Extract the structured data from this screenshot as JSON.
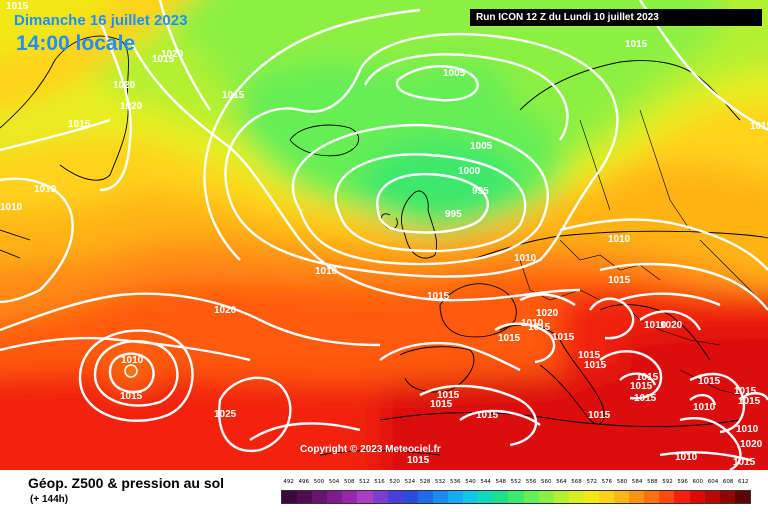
{
  "header": {
    "date": "Dimanche 16 juillet 2023",
    "local_time": "14:00 locale",
    "run_info": "Run ICON 12 Z du Lundi 10 juillet 2023"
  },
  "copyright": "Copyright © 2023 Meteociel.fr",
  "legend": {
    "title": "Géop. Z500 & pression au sol",
    "subtitle": "(+ 144h)",
    "scale": [
      {
        "value": "492",
        "color": "#3a0a3a"
      },
      {
        "value": "496",
        "color": "#4e0d52"
      },
      {
        "value": "500",
        "color": "#661470"
      },
      {
        "value": "504",
        "color": "#7d1c8c"
      },
      {
        "value": "508",
        "color": "#9527a8"
      },
      {
        "value": "512",
        "color": "#a940c2"
      },
      {
        "value": "516",
        "color": "#7a3fd0"
      },
      {
        "value": "520",
        "color": "#4a3fd8"
      },
      {
        "value": "524",
        "color": "#2a4be0"
      },
      {
        "value": "528",
        "color": "#1f6ae8"
      },
      {
        "value": "532",
        "color": "#1a8cef"
      },
      {
        "value": "536",
        "color": "#14acf2"
      },
      {
        "value": "540",
        "color": "#10c8e6"
      },
      {
        "value": "544",
        "color": "#12d9b8"
      },
      {
        "value": "548",
        "color": "#1ee08c"
      },
      {
        "value": "552",
        "color": "#3ee86a"
      },
      {
        "value": "556",
        "color": "#66ee55"
      },
      {
        "value": "560",
        "color": "#8cf043"
      },
      {
        "value": "564",
        "color": "#b4f032"
      },
      {
        "value": "568",
        "color": "#d8ee22"
      },
      {
        "value": "572",
        "color": "#f2e812"
      },
      {
        "value": "576",
        "color": "#ffd21a"
      },
      {
        "value": "580",
        "color": "#ffb418"
      },
      {
        "value": "584",
        "color": "#ff9414"
      },
      {
        "value": "588",
        "color": "#ff7010"
      },
      {
        "value": "592",
        "color": "#ff480e"
      },
      {
        "value": "596",
        "color": "#f2200c"
      },
      {
        "value": "600",
        "color": "#dc0a0a"
      },
      {
        "value": "604",
        "color": "#b80808"
      },
      {
        "value": "608",
        "color": "#900606"
      },
      {
        "value": "612",
        "color": "#5c0404"
      }
    ]
  },
  "isobar_labels": [
    "1015",
    "1020",
    "1025",
    "1015",
    "1020",
    "1020",
    "1015",
    "1015",
    "1010",
    "1010",
    "1005",
    "1015",
    "1005",
    "1000",
    "995",
    "995",
    "1010",
    "1010",
    "1010",
    "1015",
    "1015",
    "1020",
    "1020",
    "1015",
    "1015",
    "1020",
    "1010",
    "1015",
    "1015",
    "1015",
    "1015",
    "1015",
    "1010",
    "1025",
    "1015",
    "1015",
    "1015",
    "1015",
    "1015",
    "1015",
    "1010",
    "1015",
    "1015",
    "1015",
    "1010",
    "1010",
    "1015",
    "1015",
    "1020",
    "1015"
  ],
  "map": {
    "low_pressure_centers": [
      "995",
      "995"
    ],
    "high_pressure_center": "1010"
  }
}
